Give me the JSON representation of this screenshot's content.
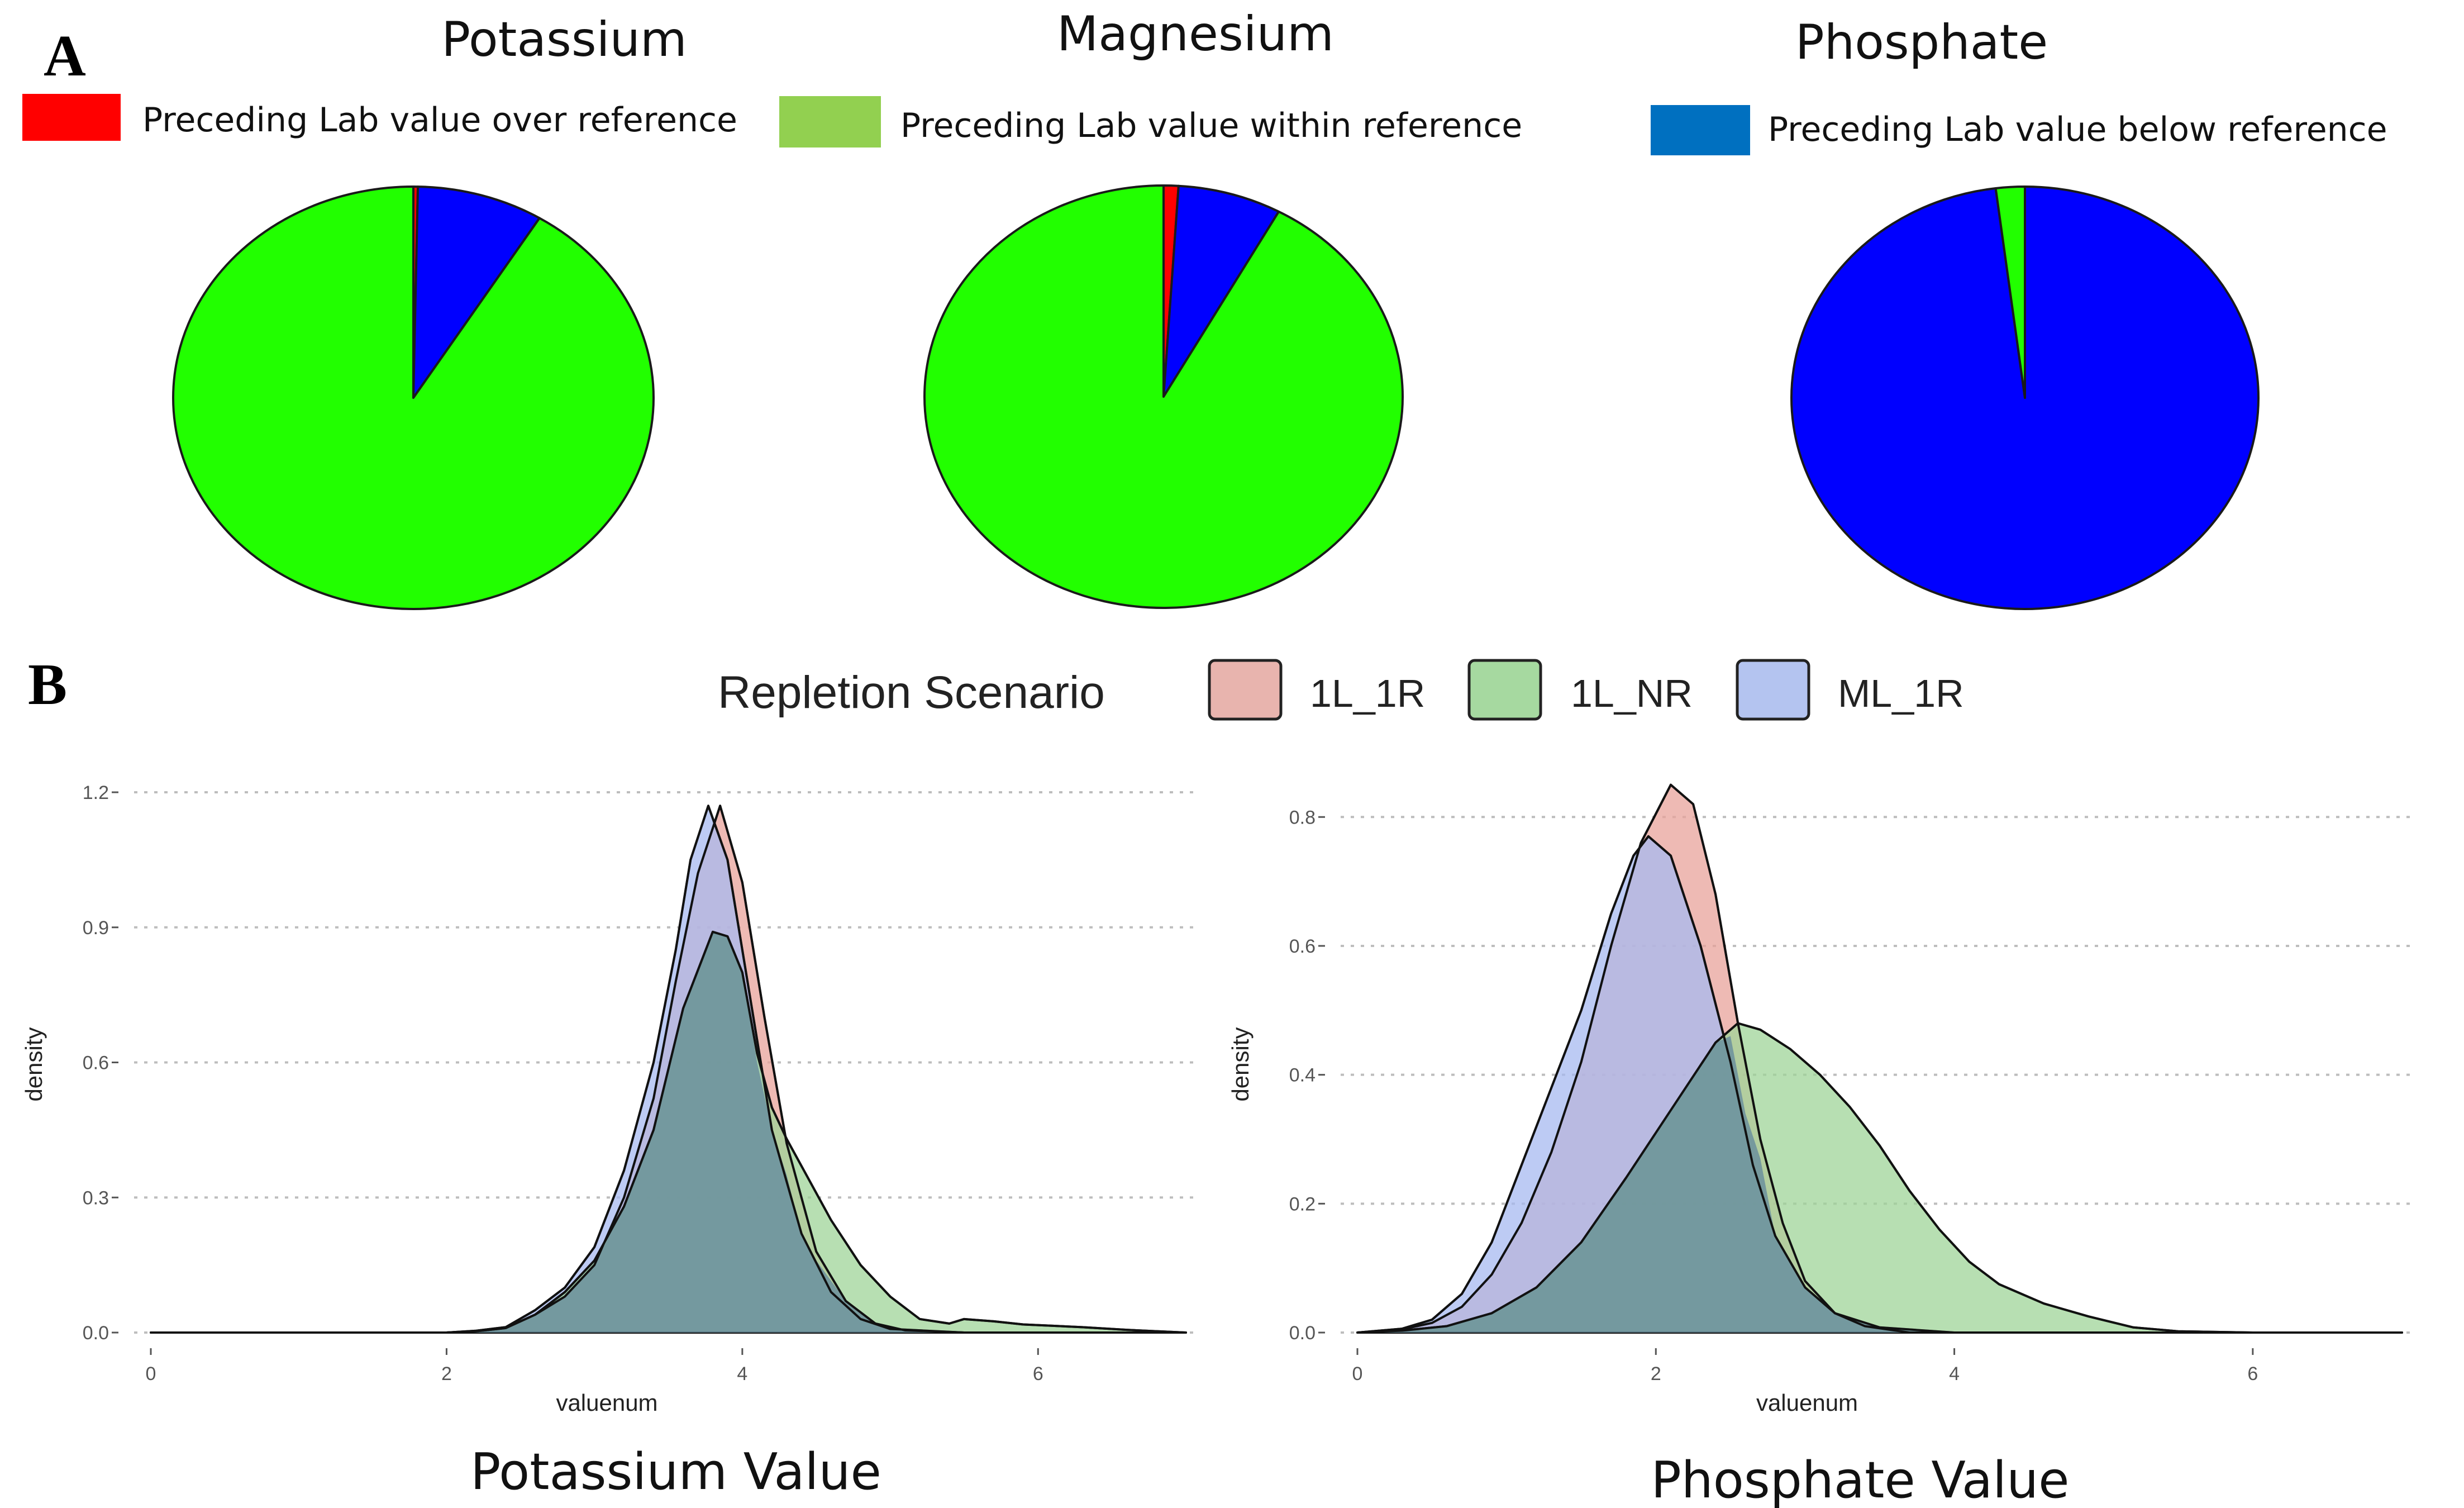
{
  "panel_a_label": "A",
  "panel_b_label": "B",
  "legend_a": {
    "items": [
      {
        "label": "Preceding Lab value over reference",
        "color": "#ff0000"
      },
      {
        "label": "Preceding Lab value within reference",
        "color": "#92d050"
      },
      {
        "label": "Preceding Lab value below reference",
        "color": "#0070c0"
      }
    ]
  },
  "legend_b": {
    "title": "Repletion Scenario",
    "items": [
      {
        "label": "1L_1R",
        "color": "#e8b4ae"
      },
      {
        "label": "1L_NR",
        "color": "#a6d9a0"
      },
      {
        "label": "ML_1R",
        "color": "#b4c4f0"
      }
    ]
  },
  "chart_data": [
    {
      "type": "pie",
      "title": "Potassium",
      "slices": [
        {
          "name": "over reference",
          "value": 0.3,
          "color": "#ff0000"
        },
        {
          "name": "below reference",
          "value": 8.5,
          "color": "#0000ff"
        },
        {
          "name": "within reference",
          "value": 91.2,
          "color": "#22ff00"
        }
      ]
    },
    {
      "type": "pie",
      "title": "Magnesium",
      "slices": [
        {
          "name": "over reference",
          "value": 1.0,
          "color": "#ff0000"
        },
        {
          "name": "below reference",
          "value": 7.0,
          "color": "#0000ff"
        },
        {
          "name": "within reference",
          "value": 92.0,
          "color": "#22ff00"
        }
      ]
    },
    {
      "type": "pie",
      "title": "Phosphate",
      "slices": [
        {
          "name": "over reference",
          "value": 0.0,
          "color": "#ff0000"
        },
        {
          "name": "below reference",
          "value": 98.0,
          "color": "#0000ff"
        },
        {
          "name": "within reference",
          "value": 2.0,
          "color": "#22ff00"
        }
      ]
    },
    {
      "type": "area",
      "subtitle": "Potassium Value",
      "xlabel": "valuenum",
      "ylabel": "density",
      "xlim": [
        0,
        7
      ],
      "ylim": [
        0,
        1.2
      ],
      "xticks": [
        0,
        2,
        4,
        6
      ],
      "yticks": [
        0.0,
        0.3,
        0.6,
        0.9,
        1.2
      ],
      "ytick_labels": [
        "0.0",
        "0.3",
        "0.6",
        "0.9",
        "1.2"
      ],
      "series": [
        {
          "name": "1L_1R",
          "color": "#e8a39b",
          "points": [
            [
              0,
              0
            ],
            [
              2,
              0
            ],
            [
              2.2,
              0.003
            ],
            [
              2.4,
              0.01
            ],
            [
              2.6,
              0.04
            ],
            [
              2.8,
              0.08
            ],
            [
              3.0,
              0.15
            ],
            [
              3.2,
              0.3
            ],
            [
              3.4,
              0.52
            ],
            [
              3.55,
              0.78
            ],
            [
              3.7,
              1.02
            ],
            [
              3.85,
              1.17
            ],
            [
              4.0,
              1.0
            ],
            [
              4.15,
              0.7
            ],
            [
              4.3,
              0.42
            ],
            [
              4.5,
              0.18
            ],
            [
              4.7,
              0.07
            ],
            [
              4.9,
              0.02
            ],
            [
              5.1,
              0.005
            ],
            [
              5.5,
              0
            ],
            [
              7,
              0
            ]
          ]
        },
        {
          "name": "ML_1R",
          "color": "#a7b9f0",
          "points": [
            [
              0,
              0
            ],
            [
              2,
              0
            ],
            [
              2.2,
              0.004
            ],
            [
              2.4,
              0.012
            ],
            [
              2.6,
              0.05
            ],
            [
              2.8,
              0.1
            ],
            [
              3.0,
              0.19
            ],
            [
              3.2,
              0.36
            ],
            [
              3.4,
              0.6
            ],
            [
              3.55,
              0.85
            ],
            [
              3.65,
              1.05
            ],
            [
              3.77,
              1.17
            ],
            [
              3.9,
              1.05
            ],
            [
              4.05,
              0.75
            ],
            [
              4.2,
              0.45
            ],
            [
              4.4,
              0.22
            ],
            [
              4.6,
              0.09
            ],
            [
              4.8,
              0.03
            ],
            [
              5.0,
              0.008
            ],
            [
              5.5,
              0
            ],
            [
              7,
              0
            ]
          ]
        },
        {
          "name": "1L_NR",
          "color": "#9fd498",
          "points": [
            [
              0,
              0
            ],
            [
              2,
              0
            ],
            [
              2.2,
              0.003
            ],
            [
              2.4,
              0.01
            ],
            [
              2.6,
              0.04
            ],
            [
              2.8,
              0.09
            ],
            [
              3.0,
              0.16
            ],
            [
              3.2,
              0.28
            ],
            [
              3.4,
              0.45
            ],
            [
              3.6,
              0.72
            ],
            [
              3.8,
              0.89
            ],
            [
              3.9,
              0.88
            ],
            [
              4.0,
              0.8
            ],
            [
              4.1,
              0.62
            ],
            [
              4.2,
              0.5
            ],
            [
              4.3,
              0.43
            ],
            [
              4.4,
              0.37
            ],
            [
              4.5,
              0.31
            ],
            [
              4.6,
              0.25
            ],
            [
              4.7,
              0.2
            ],
            [
              4.8,
              0.15
            ],
            [
              5.0,
              0.08
            ],
            [
              5.2,
              0.03
            ],
            [
              5.4,
              0.02
            ],
            [
              5.5,
              0.03
            ],
            [
              5.7,
              0.025
            ],
            [
              5.9,
              0.018
            ],
            [
              6.1,
              0.015
            ],
            [
              6.3,
              0.012
            ],
            [
              6.6,
              0.006
            ],
            [
              7,
              0
            ]
          ]
        },
        {
          "name": "overlap",
          "color": "#6b8f9c",
          "points": [
            [
              0,
              0
            ],
            [
              2,
              0
            ],
            [
              2.2,
              0.003
            ],
            [
              2.4,
              0.01
            ],
            [
              2.6,
              0.04
            ],
            [
              2.8,
              0.08
            ],
            [
              3.0,
              0.15
            ],
            [
              3.2,
              0.28
            ],
            [
              3.4,
              0.45
            ],
            [
              3.6,
              0.72
            ],
            [
              3.8,
              0.89
            ],
            [
              3.9,
              0.88
            ],
            [
              4.0,
              0.8
            ],
            [
              4.1,
              0.6
            ],
            [
              4.2,
              0.45
            ],
            [
              4.3,
              0.35
            ],
            [
              4.4,
              0.22
            ],
            [
              4.5,
              0.16
            ],
            [
              4.7,
              0.07
            ],
            [
              4.9,
              0.02
            ],
            [
              5.1,
              0.005
            ],
            [
              5.5,
              0
            ],
            [
              7,
              0
            ]
          ]
        }
      ]
    },
    {
      "type": "area",
      "subtitle": "Phosphate Value",
      "xlabel": "valuenum",
      "ylabel": "density",
      "xlim": [
        0,
        7
      ],
      "ylim": [
        0,
        0.85
      ],
      "xticks": [
        0,
        2,
        4,
        6
      ],
      "yticks": [
        0.0,
        0.2,
        0.4,
        0.6,
        0.8
      ],
      "ytick_labels": [
        "0.0",
        "0.2",
        "0.4",
        "0.6",
        "0.8"
      ],
      "series": [
        {
          "name": "1L_1R",
          "color": "#e8a39b",
          "points": [
            [
              0,
              0
            ],
            [
              0.3,
              0.005
            ],
            [
              0.5,
              0.015
            ],
            [
              0.7,
              0.04
            ],
            [
              0.9,
              0.09
            ],
            [
              1.1,
              0.17
            ],
            [
              1.3,
              0.28
            ],
            [
              1.5,
              0.42
            ],
            [
              1.7,
              0.6
            ],
            [
              1.9,
              0.76
            ],
            [
              2.1,
              0.85
            ],
            [
              2.25,
              0.82
            ],
            [
              2.4,
              0.68
            ],
            [
              2.55,
              0.48
            ],
            [
              2.7,
              0.3
            ],
            [
              2.85,
              0.17
            ],
            [
              3.0,
              0.08
            ],
            [
              3.2,
              0.03
            ],
            [
              3.4,
              0.01
            ],
            [
              3.7,
              0
            ],
            [
              7,
              0
            ]
          ]
        },
        {
          "name": "ML_1R",
          "color": "#a7b9f0",
          "points": [
            [
              0,
              0
            ],
            [
              0.3,
              0.006
            ],
            [
              0.5,
              0.02
            ],
            [
              0.7,
              0.06
            ],
            [
              0.9,
              0.14
            ],
            [
              1.1,
              0.26
            ],
            [
              1.3,
              0.38
            ],
            [
              1.5,
              0.5
            ],
            [
              1.7,
              0.65
            ],
            [
              1.85,
              0.74
            ],
            [
              1.95,
              0.77
            ],
            [
              2.1,
              0.74
            ],
            [
              2.3,
              0.6
            ],
            [
              2.5,
              0.42
            ],
            [
              2.65,
              0.26
            ],
            [
              2.8,
              0.15
            ],
            [
              3.0,
              0.07
            ],
            [
              3.2,
              0.03
            ],
            [
              3.5,
              0.008
            ],
            [
              4.0,
              0
            ],
            [
              7,
              0
            ]
          ]
        },
        {
          "name": "1L_NR",
          "color": "#9fd498",
          "points": [
            [
              0,
              0
            ],
            [
              0.3,
              0.003
            ],
            [
              0.6,
              0.01
            ],
            [
              0.9,
              0.03
            ],
            [
              1.2,
              0.07
            ],
            [
              1.5,
              0.14
            ],
            [
              1.8,
              0.24
            ],
            [
              2.0,
              0.31
            ],
            [
              2.2,
              0.38
            ],
            [
              2.4,
              0.45
            ],
            [
              2.55,
              0.48
            ],
            [
              2.7,
              0.47
            ],
            [
              2.9,
              0.44
            ],
            [
              3.1,
              0.4
            ],
            [
              3.3,
              0.35
            ],
            [
              3.5,
              0.29
            ],
            [
              3.7,
              0.22
            ],
            [
              3.9,
              0.16
            ],
            [
              4.1,
              0.11
            ],
            [
              4.3,
              0.075
            ],
            [
              4.6,
              0.045
            ],
            [
              4.9,
              0.025
            ],
            [
              5.2,
              0.008
            ],
            [
              5.5,
              0.002
            ],
            [
              6,
              0
            ],
            [
              7,
              0
            ]
          ]
        },
        {
          "name": "overlap",
          "color": "#6b8f9c",
          "points": [
            [
              0,
              0
            ],
            [
              0.3,
              0.003
            ],
            [
              0.6,
              0.01
            ],
            [
              0.9,
              0.03
            ],
            [
              1.2,
              0.07
            ],
            [
              1.5,
              0.14
            ],
            [
              1.8,
              0.24
            ],
            [
              2.0,
              0.31
            ],
            [
              2.2,
              0.38
            ],
            [
              2.4,
              0.45
            ],
            [
              2.5,
              0.46
            ],
            [
              2.6,
              0.34
            ],
            [
              2.7,
              0.27
            ],
            [
              2.8,
              0.15
            ],
            [
              3.0,
              0.07
            ],
            [
              3.2,
              0.03
            ],
            [
              3.5,
              0.008
            ],
            [
              4.0,
              0
            ],
            [
              7,
              0
            ]
          ]
        }
      ]
    }
  ]
}
